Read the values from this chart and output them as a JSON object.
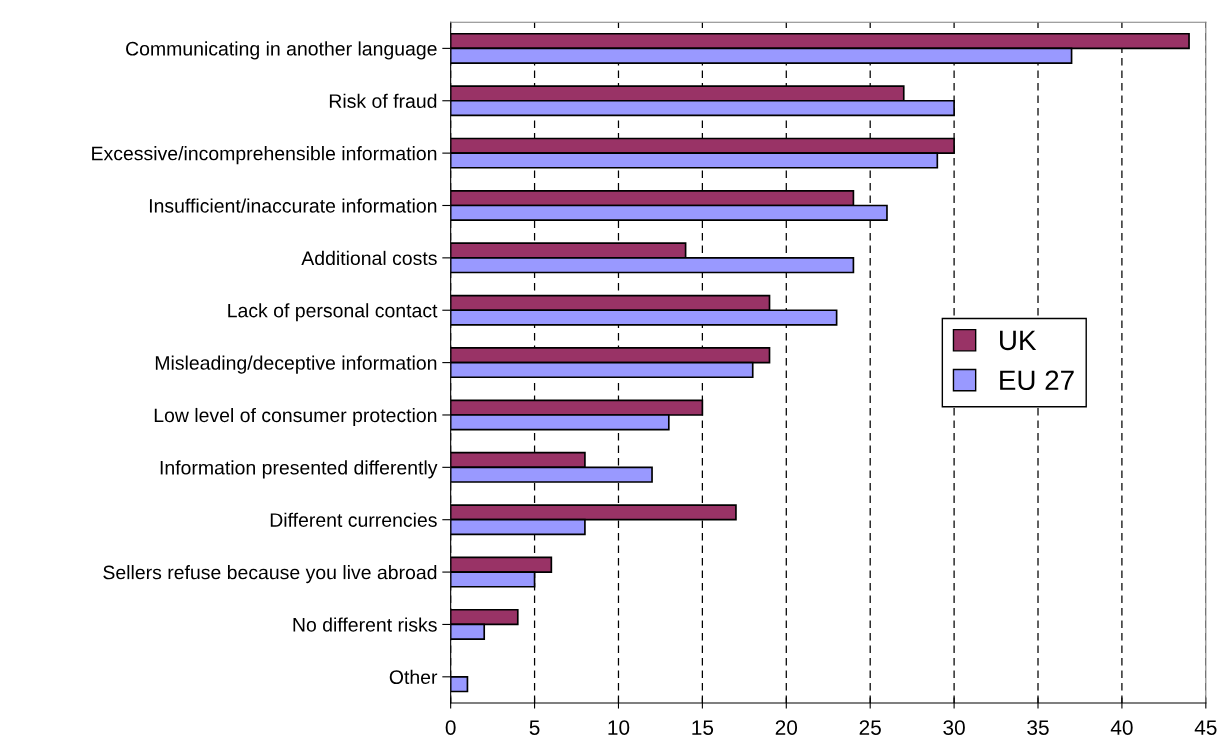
{
  "chart_data": {
    "type": "bar",
    "orientation": "horizontal",
    "categories": [
      "Communicating in another language",
      "Risk of fraud",
      "Excessive/incomprehensible information",
      "Insufficient/inaccurate information",
      "Additional costs",
      "Lack of personal contact",
      "Misleading/deceptive information",
      "Low level of consumer protection",
      "Information presented differently",
      "Different currencies",
      "Sellers refuse because you live abroad",
      "No different risks",
      "Other"
    ],
    "series": [
      {
        "name": "UK",
        "color": "#993366",
        "values": [
          44,
          27,
          30,
          24,
          14,
          19,
          19,
          15,
          8,
          17,
          6,
          4,
          null
        ]
      },
      {
        "name": "EU 27",
        "color": "#9999ff",
        "values": [
          37,
          30,
          29,
          26,
          24,
          23,
          18,
          13,
          12,
          8,
          5,
          2,
          1
        ]
      }
    ],
    "xlim": [
      0,
      45
    ],
    "xticks": [
      0,
      5,
      10,
      15,
      20,
      25,
      30,
      35,
      40,
      45
    ],
    "grid": "x",
    "legend": "right"
  }
}
